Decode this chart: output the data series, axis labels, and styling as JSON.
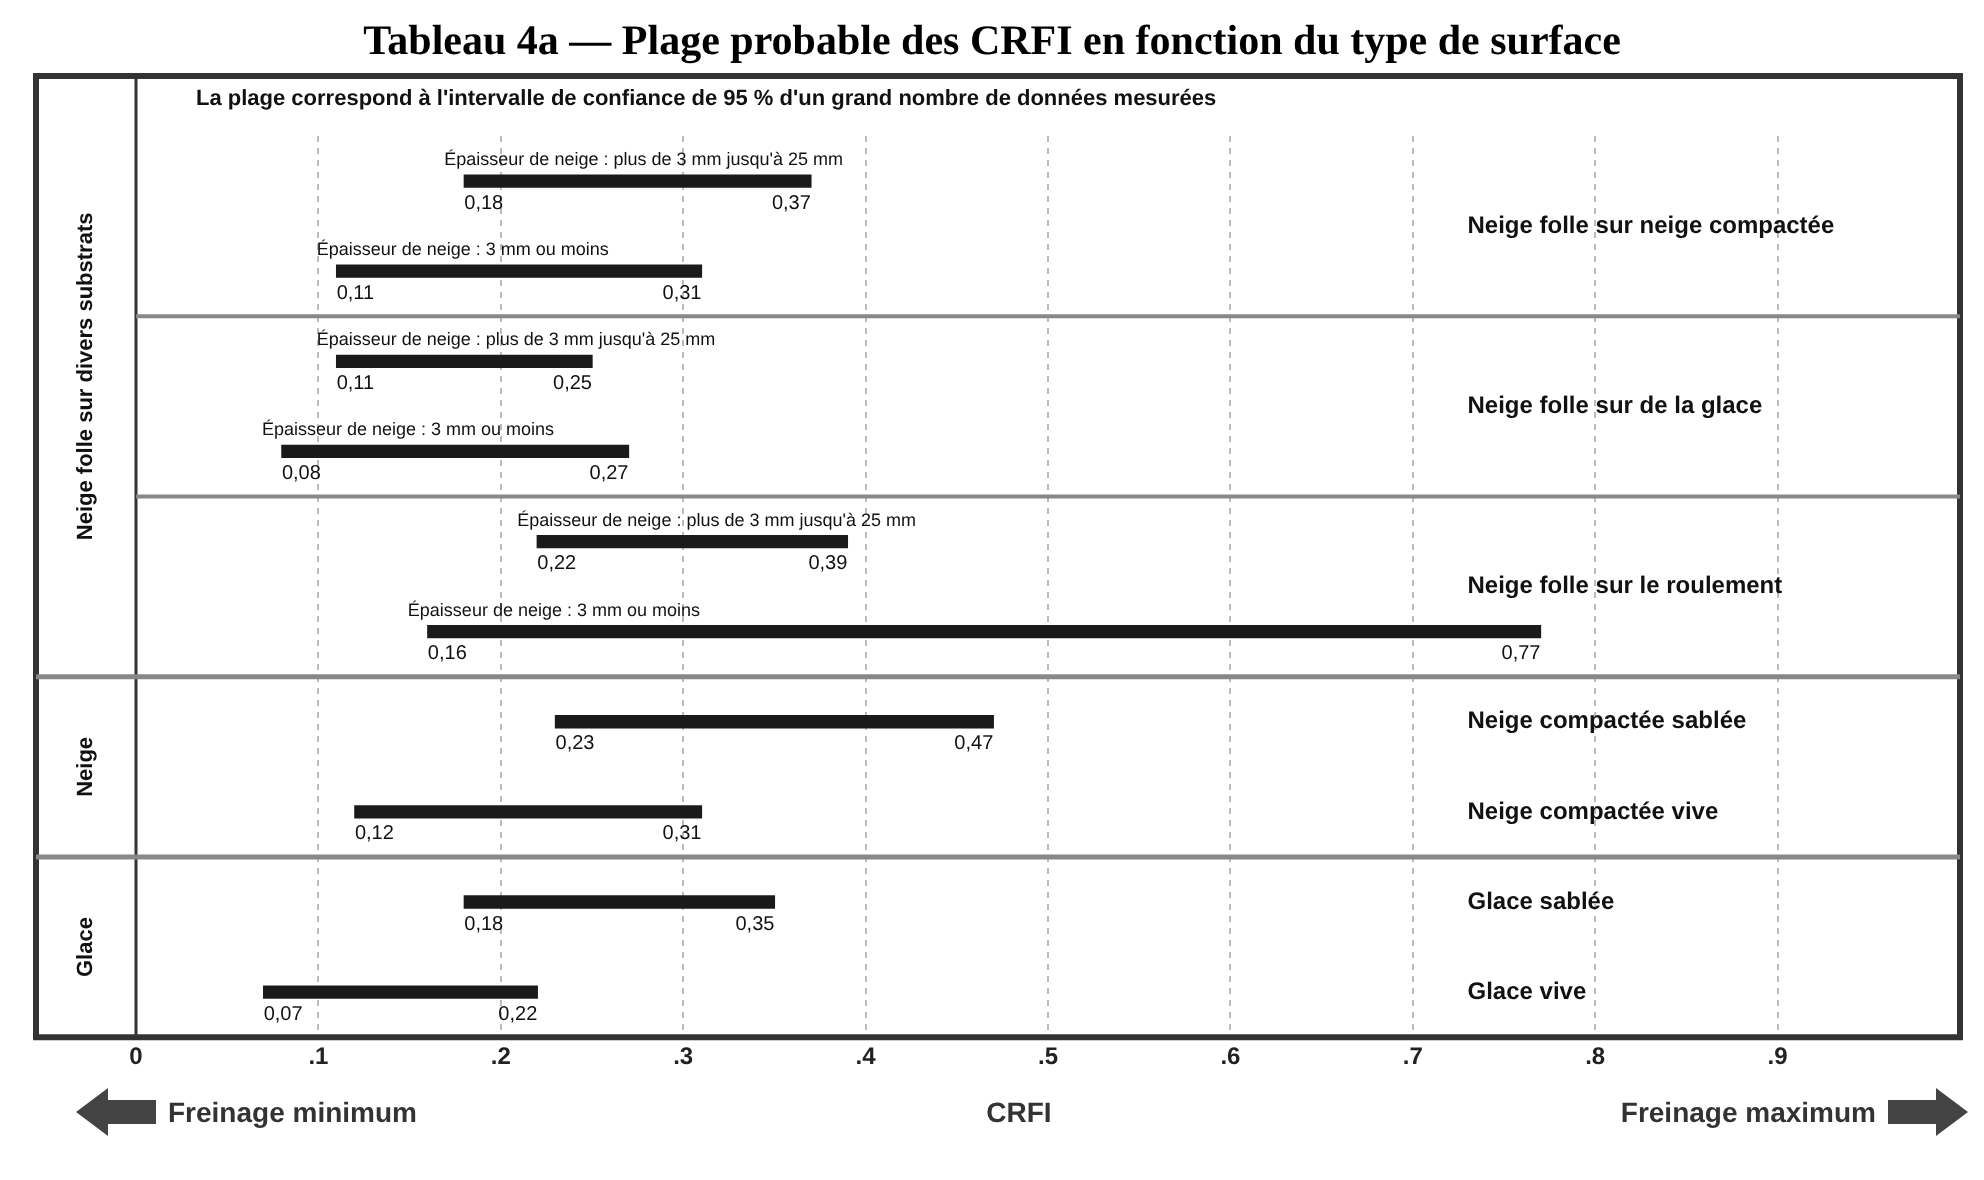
{
  "chart_data": {
    "type": "bar",
    "orientation": "horizontal",
    "title": "Tableau 4a — Plage probable des CRFI en fonction du type de surface",
    "xlabel": "CRFI",
    "categories": [
      "Épaisseur de neige : plus de 3 mm jusqu'à 25 mm",
      "Épaisseur de neige : 3 mm ou moins",
      "Épaisseur de neige : plus de 3 mm jusqu'à 25 mm",
      "Épaisseur de neige : 3 mm ou moins",
      "Épaisseur de neige : plus de 3 mm jusqu'à 25 mm",
      "Épaisseur de neige : 3 mm ou moins",
      "Neige compactée sablée",
      "Neige compactée vive",
      "Glace sablée",
      "Glace vive"
    ],
    "base": [
      0.18,
      0.11,
      0.11,
      0.08,
      0.22,
      0.16,
      0.23,
      0.12,
      0.18,
      0.07
    ],
    "values": [
      0.19,
      0.2,
      0.14,
      0.19,
      0.17,
      0.61,
      0.24,
      0.19,
      0.17,
      0.15
    ],
    "value_labels": [
      "0,37",
      "0,31",
      "0,25",
      "0,27",
      "0,39",
      "0,77",
      "0,47",
      "0,31",
      "0,35",
      "0,22"
    ],
    "color": "#1a1a1a",
    "xlim": [
      0,
      1
    ],
    "xticks": [
      {
        "value": 0,
        "label": "0"
      },
      {
        "value": 0.1,
        "label": ".1"
      },
      {
        "value": 0.2,
        "label": ".2"
      },
      {
        "value": 0.3,
        "label": ".3"
      },
      {
        "value": 0.4,
        "label": ".4"
      },
      {
        "value": 0.5,
        "label": ".5"
      },
      {
        "value": 0.6,
        "label": ".6"
      },
      {
        "value": 0.7,
        "label": ".7"
      },
      {
        "value": 0.8,
        "label": ".8"
      },
      {
        "value": 0.9,
        "label": ".9"
      }
    ],
    "grid": "x",
    "legend": false,
    "annotations": [
      "La plage correspond à l'intervalle de confiance de 95 % d'un grand nombre de données mesurées",
      "Neige folle sur neige compactée",
      "Neige folle sur de la glace",
      "Neige folle sur le roulement",
      "Neige folle sur divers substrats",
      "Neige",
      "Glace",
      "Freinage minimum",
      "Freinage maximum",
      "0,18",
      "0,11",
      "0,11",
      "0,08",
      "0,22",
      "0,16",
      "0,23",
      "0,12",
      "0,18",
      "0,07"
    ]
  }
}
